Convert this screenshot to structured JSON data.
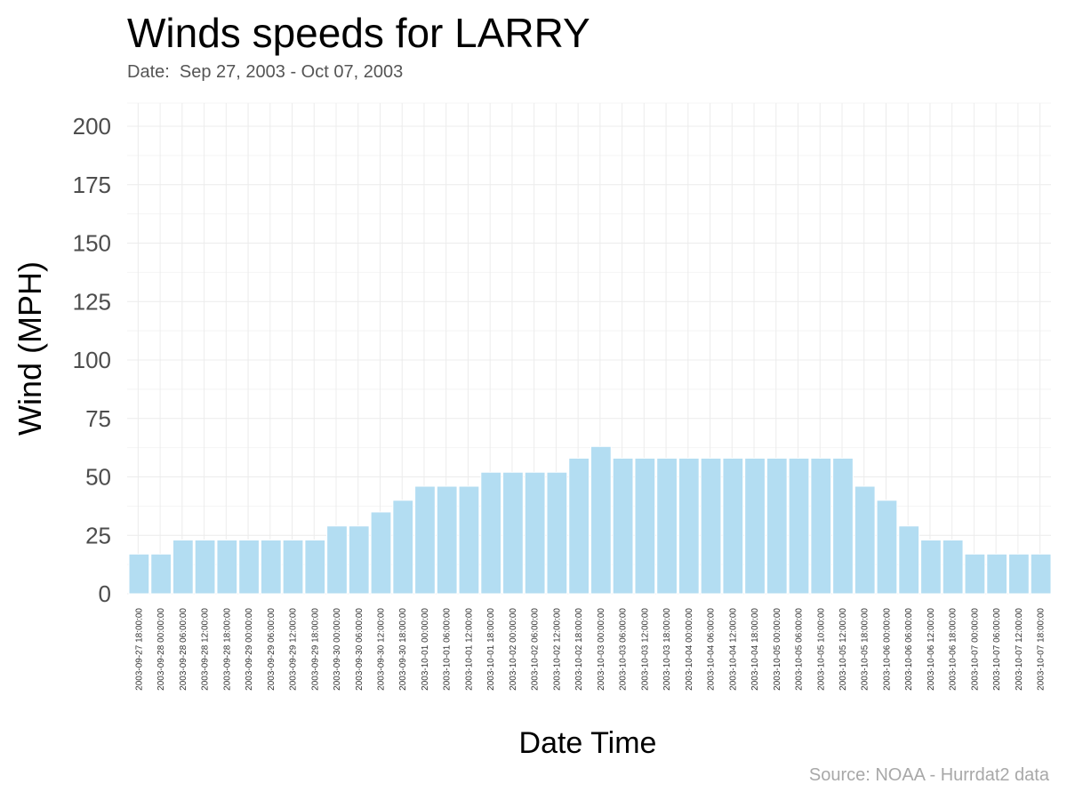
{
  "title": "Winds speeds for LARRY",
  "subtitle": "Date:  Sep 27, 2003 - Oct 07, 2003",
  "caption": "Source: NOAA - Hurrdat2 data",
  "colors": {
    "bar_fill": "#b3ddf2",
    "bar_stroke": "#ffffff",
    "grid": "#ececec",
    "background": "#ffffff"
  },
  "chart_data": {
    "type": "bar",
    "title": "Winds speeds for LARRY",
    "xlabel": "Date Time",
    "ylabel": "Wind (MPH)",
    "ylim": [
      0,
      200
    ],
    "yticks": [
      0,
      25,
      50,
      75,
      100,
      125,
      150,
      175,
      200
    ],
    "grid": true,
    "categories": [
      "2003-09-27 18:00:00",
      "2003-09-28 00:00:00",
      "2003-09-28 06:00:00",
      "2003-09-28 12:00:00",
      "2003-09-28 18:00:00",
      "2003-09-29 00:00:00",
      "2003-09-29 06:00:00",
      "2003-09-29 12:00:00",
      "2003-09-29 18:00:00",
      "2003-09-30 00:00:00",
      "2003-09-30 06:00:00",
      "2003-09-30 12:00:00",
      "2003-09-30 18:00:00",
      "2003-10-01 00:00:00",
      "2003-10-01 06:00:00",
      "2003-10-01 12:00:00",
      "2003-10-01 18:00:00",
      "2003-10-02 00:00:00",
      "2003-10-02 06:00:00",
      "2003-10-02 12:00:00",
      "2003-10-02 18:00:00",
      "2003-10-03 00:00:00",
      "2003-10-03 06:00:00",
      "2003-10-03 12:00:00",
      "2003-10-03 18:00:00",
      "2003-10-04 00:00:00",
      "2003-10-04 06:00:00",
      "2003-10-04 12:00:00",
      "2003-10-04 18:00:00",
      "2003-10-05 00:00:00",
      "2003-10-05 06:00:00",
      "2003-10-05 10:00:00",
      "2003-10-05 12:00:00",
      "2003-10-05 18:00:00",
      "2003-10-06 00:00:00",
      "2003-10-06 06:00:00",
      "2003-10-06 12:00:00",
      "2003-10-06 18:00:00",
      "2003-10-07 00:00:00",
      "2003-10-07 06:00:00",
      "2003-10-07 12:00:00",
      "2003-10-07 18:00:00"
    ],
    "values": [
      17,
      17,
      23,
      23,
      23,
      23,
      23,
      23,
      23,
      29,
      29,
      35,
      40,
      46,
      46,
      46,
      52,
      52,
      52,
      52,
      58,
      63,
      58,
      58,
      58,
      58,
      58,
      58,
      58,
      58,
      58,
      58,
      58,
      46,
      40,
      29,
      23,
      23,
      17,
      17,
      17,
      17
    ]
  }
}
